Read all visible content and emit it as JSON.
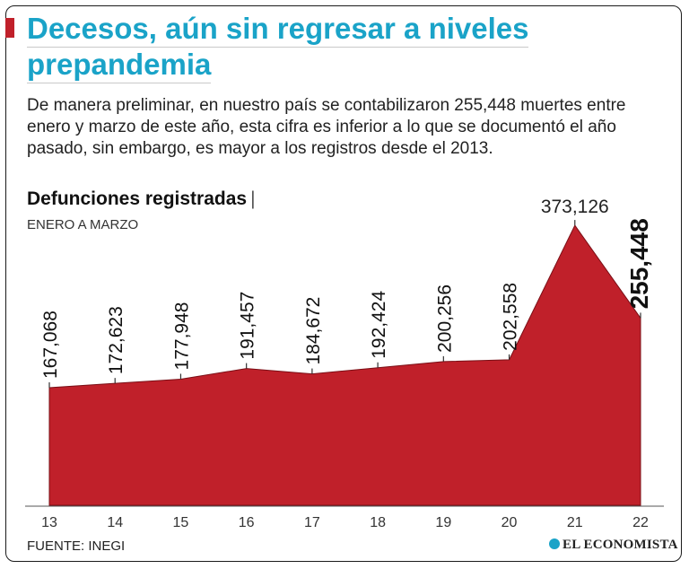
{
  "headline": {
    "line1": "Decesos, aún sin regresar a niveles",
    "line2": "prepandemia"
  },
  "intro": "De manera preliminar, en nuestro país se contabilizaron 255,448 muertes entre enero y marzo de este año, esta cifra es inferior a lo que se documentó el año pasado, sin embargo, es mayor a los registros desde el 2013.",
  "chart_title": "Defunciones registradas",
  "chart_title_separator": "|",
  "chart_period": "ENERO A MARZO",
  "source": "FUENTE: INEGI",
  "logo": "EL ECONOMISTA",
  "colors": {
    "accent": "#c0202a",
    "headline": "#1aa3c8",
    "area": "#c0202a"
  },
  "chart_data": {
    "type": "area",
    "title": "Defunciones registradas",
    "subtitle": "ENERO A MARZO",
    "categories": [
      "13",
      "14",
      "15",
      "16",
      "17",
      "18",
      "19",
      "20",
      "21",
      "22"
    ],
    "values": [
      167068,
      172623,
      177948,
      191457,
      184672,
      192424,
      200256,
      202558,
      373126,
      255448
    ],
    "value_labels": [
      "167,068",
      "172,623",
      "177,948",
      "191,457",
      "184,672",
      "192,424",
      "200,256",
      "202,558",
      "373,126",
      "255,448"
    ],
    "highlight_index": 9,
    "xlabel": "",
    "ylabel": "",
    "grid": false,
    "legend": false
  }
}
